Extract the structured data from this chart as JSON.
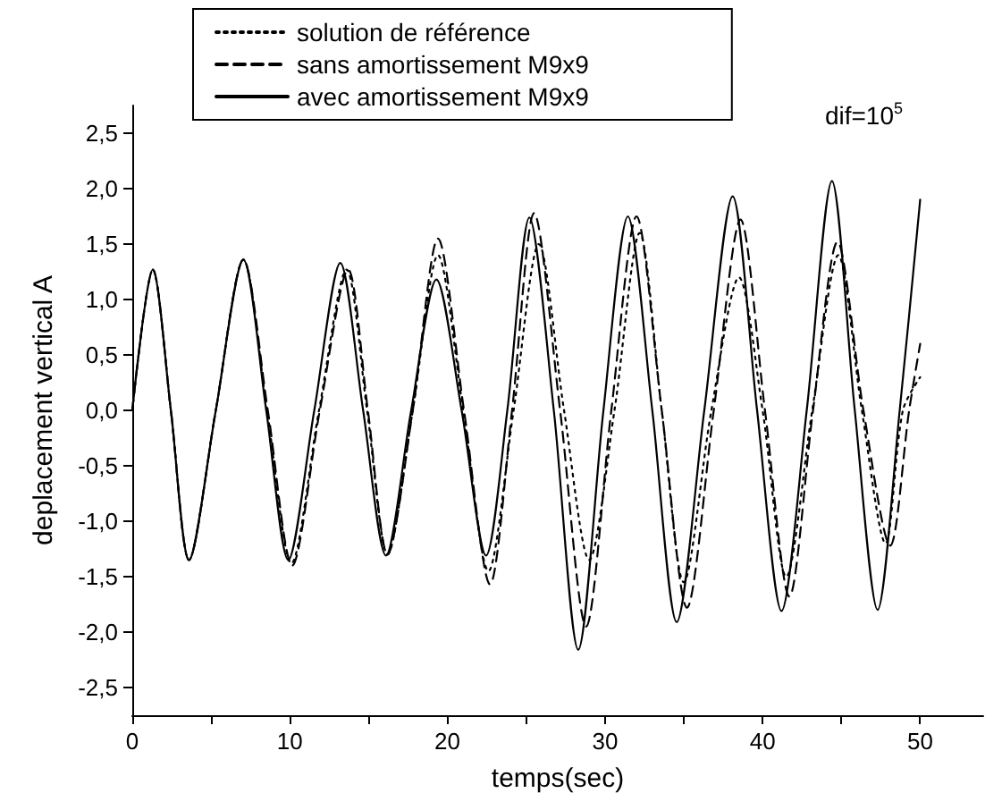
{
  "chart_data": {
    "type": "line",
    "xlabel": "temps(sec)",
    "ylabel": "deplacement vertical A",
    "xlim": [
      0,
      54
    ],
    "xticks": [
      0,
      {
        "value": 5,
        "label": null
      },
      10,
      {
        "value": 15,
        "label": null
      },
      20,
      {
        "value": 25,
        "label": null
      },
      30,
      {
        "value": 35,
        "label": null
      },
      40,
      {
        "value": 45,
        "label": null
      },
      50
    ],
    "ylim": [
      -2.75,
      2.75
    ],
    "yticks": [
      {
        "value": -2.5,
        "label": "-2,5"
      },
      {
        "value": -2,
        "label": "-2,0"
      },
      {
        "value": -1.5,
        "label": "-1,5"
      },
      {
        "value": -1,
        "label": "-1,0"
      },
      {
        "value": -0.5,
        "label": "-0,5"
      },
      {
        "value": 0,
        "label": "0,0"
      },
      {
        "value": 0.5,
        "label": "0,5"
      },
      {
        "value": 1,
        "label": "1,0"
      },
      {
        "value": 1.5,
        "label": "1,5"
      },
      {
        "value": 2,
        "label": "2,0"
      },
      {
        "value": 2.5,
        "label": "2,5"
      }
    ],
    "grid": false,
    "legend": "top",
    "marker": "none",
    "annotations": [
      "dif=10$^{5}$"
    ],
    "series": [
      {
        "name": "solution de référence",
        "color": "#000000",
        "line_style": "dotted",
        "x": [
          0,
          1.3,
          2.45,
          3.6,
          5.3,
          7.05,
          8.55,
          10.1,
          11.85,
          13.6,
          14.9,
          16.2,
          17.8,
          19.4,
          21.0,
          22.6,
          24.2,
          25.8,
          27.4,
          29.0,
          30.6,
          32.2,
          33.6,
          35.0,
          36.75,
          38.5,
          40.0,
          41.5,
          43.15,
          44.8,
          46.3,
          47.8,
          48.9,
          50
        ],
        "values": [
          0,
          1.27,
          0,
          -1.35,
          0,
          1.36,
          0,
          -1.38,
          0,
          1.27,
          0,
          -1.3,
          0,
          1.4,
          0,
          -1.45,
          0,
          1.5,
          0,
          -1.35,
          0,
          1.6,
          0,
          -1.55,
          0,
          1.2,
          0,
          -1.5,
          0,
          1.4,
          0,
          -1.2,
          0,
          0.3
        ]
      },
      {
        "name": "sans amortissement M9x9",
        "color": "#000000",
        "line_style": "dashed",
        "x": [
          0,
          1.3,
          2.45,
          3.6,
          5.3,
          7.05,
          8.6,
          10.15,
          11.9,
          13.7,
          14.95,
          16.2,
          17.8,
          19.4,
          21.05,
          22.7,
          24.1,
          25.5,
          27.15,
          28.8,
          30.4,
          32.0,
          33.6,
          35.2,
          36.9,
          38.6,
          40.15,
          41.7,
          43.2,
          44.75,
          46.4,
          48.1,
          49.3,
          50
        ],
        "values": [
          0,
          1.27,
          0,
          -1.35,
          0,
          1.36,
          0,
          -1.4,
          0,
          1.27,
          0,
          -1.3,
          0,
          1.55,
          0,
          -1.57,
          0,
          1.78,
          0,
          -1.95,
          0,
          1.75,
          0,
          -1.78,
          0,
          1.72,
          0,
          -1.68,
          0,
          1.52,
          0,
          -1.22,
          0,
          0.6
        ]
      },
      {
        "name": "avec amortissement M9x9",
        "color": "#000000",
        "line_style": "solid",
        "x": [
          0,
          1.3,
          2.45,
          3.6,
          5.3,
          7.05,
          8.5,
          9.9,
          11.55,
          13.2,
          14.65,
          16.1,
          17.7,
          19.3,
          20.9,
          22.45,
          23.8,
          25.2,
          26.75,
          28.3,
          29.9,
          31.45,
          33.0,
          34.55,
          36.3,
          38.1,
          39.65,
          41.2,
          42.8,
          44.4,
          45.85,
          47.3,
          48.7,
          50
        ],
        "values": [
          0,
          1.27,
          0,
          -1.35,
          0,
          1.36,
          0,
          -1.35,
          0,
          1.33,
          0,
          -1.31,
          0,
          1.18,
          0,
          -1.31,
          0,
          1.74,
          0,
          -2.16,
          0,
          1.75,
          0,
          -1.91,
          0,
          1.93,
          0,
          -1.81,
          0,
          2.07,
          0,
          -1.8,
          0,
          1.9
        ]
      }
    ]
  }
}
